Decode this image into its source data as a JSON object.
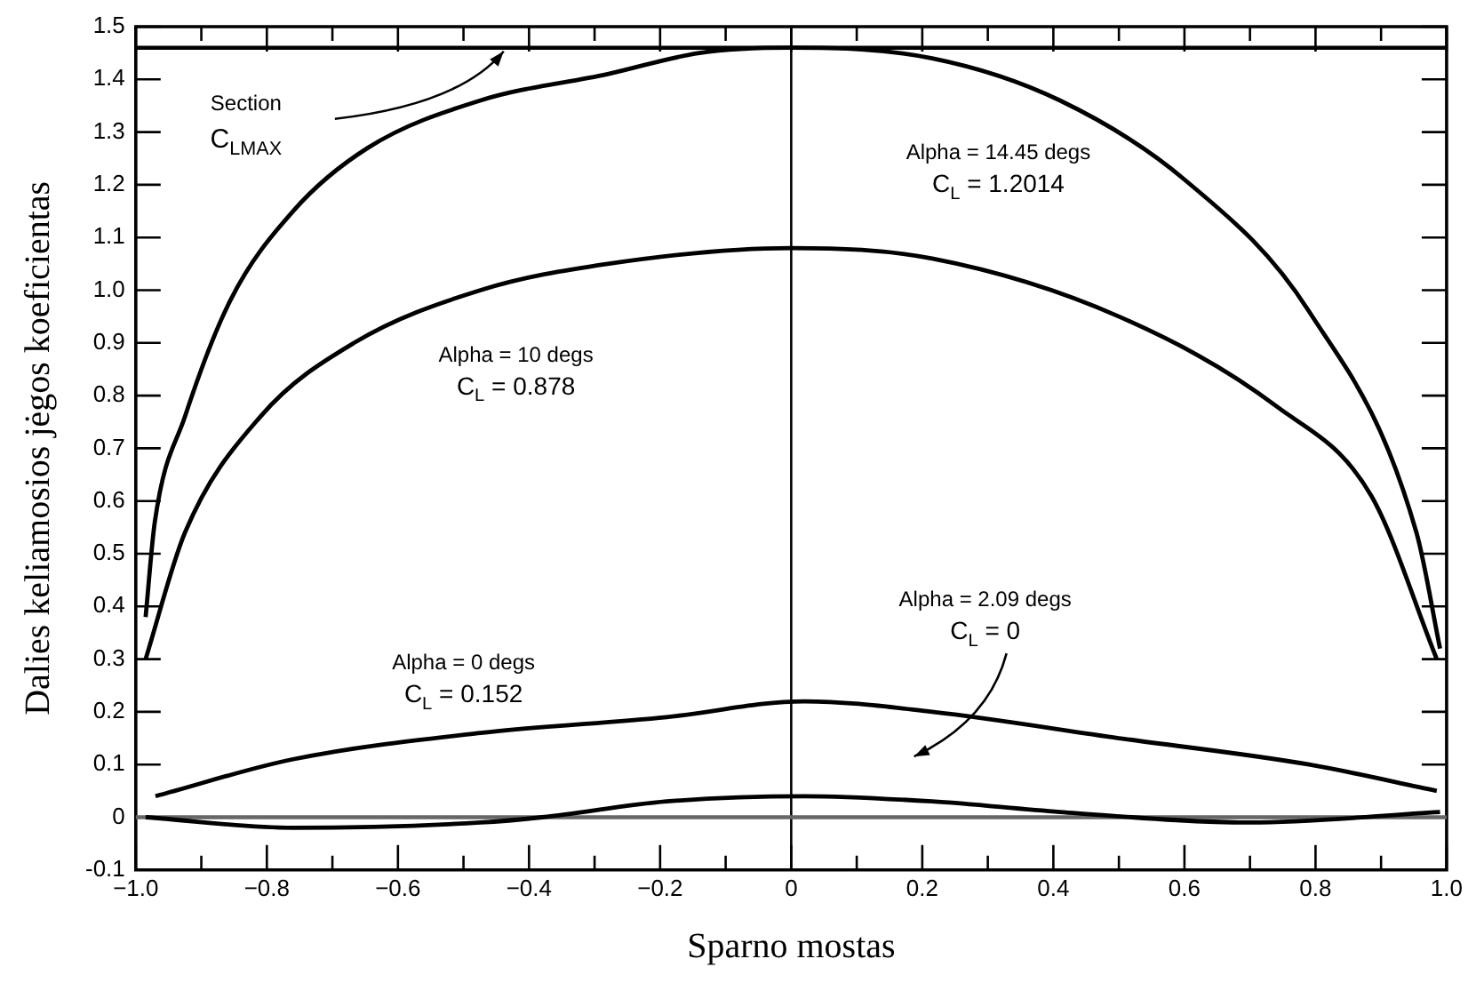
{
  "chart_data": {
    "type": "line",
    "xlabel": "Sparno mostas",
    "ylabel": "Dalies keliamosios jėgos koeficientas",
    "xlim": [
      -1,
      1
    ],
    "xticks": [
      {
        "value": -1,
        "label": "−1.0"
      },
      {
        "value": -0.9,
        "label": null
      },
      {
        "value": -0.8,
        "label": "−0.8"
      },
      {
        "value": -0.7,
        "label": null
      },
      {
        "value": -0.6,
        "label": "−0.6"
      },
      {
        "value": -0.5,
        "label": null
      },
      {
        "value": -0.4,
        "label": "−0.4"
      },
      {
        "value": -0.3,
        "label": null
      },
      {
        "value": -0.2,
        "label": "−0.2"
      },
      {
        "value": -0.1,
        "label": null
      },
      0,
      {
        "value": 0.1,
        "label": null
      },
      0.2,
      {
        "value": 0.3,
        "label": null
      },
      0.4,
      {
        "value": 0.5,
        "label": null
      },
      0.6,
      {
        "value": 0.7,
        "label": null
      },
      0.8,
      {
        "value": 0.9,
        "label": null
      },
      {
        "value": 1,
        "label": "1.0"
      }
    ],
    "ylim": [
      -0.1,
      1.5
    ],
    "yticks": [
      -0.1,
      0,
      0.1,
      0.2,
      0.3,
      0.4,
      0.5,
      0.6,
      0.7,
      0.8,
      0.9,
      {
        "value": 1,
        "label": "1.0"
      },
      1.1,
      1.2,
      1.3,
      1.4,
      1.5
    ],
    "series": [
      {
        "color": "#000000",
        "x": [
          -0.985,
          -0.971,
          -0.925,
          -0.856,
          -0.76,
          -0.646,
          -0.474,
          -0.28,
          -0.14,
          0,
          0.215,
          0.41,
          0.6,
          0.79,
          0.954,
          0.99
        ],
        "values": [
          0.38,
          0.56,
          0.76,
          0.98,
          1.15,
          1.27,
          1.36,
          1.41,
          1.45,
          1.46,
          1.44,
          1.36,
          1.21,
          0.96,
          0.54,
          0.32
        ]
      },
      {
        "color": "#000000",
        "x": [
          -0.985,
          -0.925,
          -0.81,
          -0.667,
          -0.474,
          -0.28,
          0,
          0.215,
          0.5,
          0.74,
          0.885,
          0.985
        ],
        "values": [
          0.3,
          0.54,
          0.76,
          0.9,
          1.0,
          1.05,
          1.08,
          1.06,
          0.95,
          0.78,
          0.61,
          0.3
        ]
      },
      {
        "color": "#000000",
        "x": [
          -0.97,
          -0.76,
          -0.474,
          -0.19,
          0.02,
          0.215,
          0.5,
          0.79,
          0.985
        ],
        "values": [
          0.04,
          0.11,
          0.16,
          0.19,
          0.22,
          0.2,
          0.15,
          0.1,
          0.05
        ]
      },
      {
        "color": "#000000",
        "x": [
          -0.985,
          -0.76,
          -0.474,
          -0.38,
          -0.19,
          0.02,
          0.215,
          0.41,
          0.7,
          0.99
        ],
        "values": [
          0,
          -0.02,
          -0.01,
          0,
          0.03,
          0.04,
          0.03,
          0.01,
          -0.01,
          0.01
        ]
      }
    ],
    "ref_lines": [
      {
        "axis": "y",
        "value": 1.46,
        "label": "Section C$_{LMAX}$",
        "color": "#000000"
      },
      {
        "axis": "x",
        "value": 0,
        "color": "#000000"
      },
      {
        "axis": "y",
        "value": 0,
        "color": "#666666"
      }
    ],
    "annotations": [
      "Alpha = 14.45 degs\nC$_{L}$ = 1.2014",
      "Alpha = 10 degs\nC$_{L}$ = 0.878",
      "Alpha = 0 degs\nC$_{L}$ = 0.152",
      "Alpha = 2.09 degs\nC$_{L}$ = 0"
    ]
  }
}
